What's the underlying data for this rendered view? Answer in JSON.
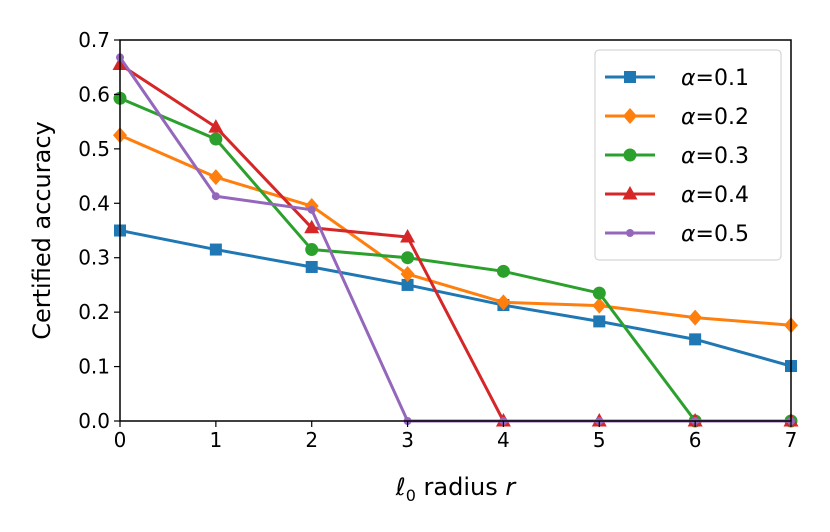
{
  "chart_data": {
    "type": "line",
    "xlabel_main": "ℓ",
    "xlabel_sub": "0",
    "xlabel_rest": " radius ",
    "xlabel_var": "r",
    "ylabel": "Certified accuracy",
    "xlim": [
      0,
      7
    ],
    "ylim": [
      0,
      0.7
    ],
    "x_ticks": [
      "0",
      "1",
      "2",
      "3",
      "4",
      "5",
      "6",
      "7"
    ],
    "y_ticks": [
      "0.0",
      "0.1",
      "0.2",
      "0.3",
      "0.4",
      "0.5",
      "0.6",
      "0.7"
    ],
    "grid": false,
    "legend_position": "top-right",
    "x": [
      0,
      1,
      2,
      3,
      4,
      5,
      6,
      7
    ],
    "series": [
      {
        "name_sym": "α",
        "name_val": "=0.1",
        "color": "#1f77b4",
        "marker": "square",
        "values": [
          0.35,
          0.315,
          0.283,
          0.25,
          0.213,
          0.183,
          0.15,
          0.101
        ]
      },
      {
        "name_sym": "α",
        "name_val": "=0.2",
        "color": "#ff7f0e",
        "marker": "diamond",
        "values": [
          0.525,
          0.448,
          0.395,
          0.27,
          0.218,
          0.212,
          0.19,
          0.176
        ]
      },
      {
        "name_sym": "α",
        "name_val": "=0.3",
        "color": "#2ca02c",
        "marker": "circle",
        "values": [
          0.593,
          0.518,
          0.315,
          0.3,
          0.275,
          0.235,
          0.0,
          0.0
        ]
      },
      {
        "name_sym": "α",
        "name_val": "=0.4",
        "color": "#d62728",
        "marker": "triangle",
        "values": [
          0.655,
          0.54,
          0.355,
          0.338,
          0.0,
          0.0,
          0.0,
          0.0
        ]
      },
      {
        "name_sym": "α",
        "name_val": "=0.5",
        "color": "#9467bd",
        "marker": "dot",
        "values": [
          0.668,
          0.413,
          0.388,
          0.0,
          0.0,
          0.0,
          0.0,
          0.0
        ]
      }
    ]
  }
}
